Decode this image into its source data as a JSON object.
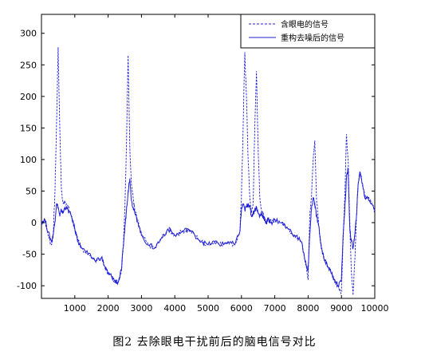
{
  "caption": "图2   去除眼电干扰前后的脑电信号对比",
  "colors": {
    "series": "#1f1fd6",
    "axis": "#000000",
    "background": "#ffffff"
  },
  "chart_data": {
    "type": "line",
    "title": "",
    "xlabel": "",
    "ylabel": "",
    "xlim": [
      0,
      10000
    ],
    "ylim": [
      -120,
      330
    ],
    "xticks": [
      1000,
      2000,
      3000,
      4000,
      5000,
      6000,
      7000,
      8000,
      9000,
      10000
    ],
    "yticks": [
      -100,
      -50,
      0,
      50,
      100,
      150,
      200,
      250,
      300
    ],
    "grid": false,
    "legend_position": "top-right",
    "series": [
      {
        "name": "含眼电的信号",
        "style": "dashed",
        "x": [
          0,
          100,
          200,
          300,
          350,
          400,
          450,
          500,
          550,
          600,
          650,
          700,
          800,
          900,
          1000,
          1100,
          1200,
          1400,
          1600,
          1800,
          1900,
          2000,
          2100,
          2200,
          2300,
          2400,
          2450,
          2500,
          2550,
          2600,
          2650,
          2700,
          2750,
          2800,
          2900,
          3000,
          3200,
          3400,
          3600,
          3800,
          4000,
          4200,
          4400,
          4600,
          4800,
          5000,
          5200,
          5400,
          5600,
          5800,
          5950,
          6000,
          6050,
          6100,
          6150,
          6200,
          6250,
          6300,
          6350,
          6400,
          6450,
          6500,
          6550,
          6600,
          6650,
          6700,
          6750,
          6800,
          6900,
          7000,
          7200,
          7400,
          7600,
          7800,
          7950,
          8000,
          8050,
          8100,
          8150,
          8200,
          8250,
          8300,
          8350,
          8400,
          8500,
          8600,
          8700,
          8800,
          8900,
          9000,
          9050,
          9100,
          9150,
          9200,
          9250,
          9300,
          9350,
          9400,
          9450,
          9500,
          9550,
          9600,
          9700,
          9800,
          9900,
          10000
        ],
        "y": [
          0,
          5,
          -20,
          -35,
          -20,
          40,
          150,
          278,
          150,
          50,
          30,
          35,
          25,
          10,
          -10,
          -30,
          -40,
          -50,
          -60,
          -55,
          -70,
          -80,
          -85,
          -92,
          -95,
          -75,
          -40,
          20,
          120,
          265,
          120,
          60,
          40,
          20,
          0,
          -20,
          -35,
          -40,
          -25,
          -10,
          -20,
          -15,
          -10,
          -20,
          -30,
          -35,
          -30,
          -35,
          -30,
          -35,
          -15,
          40,
          150,
          270,
          200,
          100,
          40,
          15,
          30,
          150,
          240,
          120,
          40,
          20,
          15,
          5,
          0,
          5,
          0,
          5,
          0,
          -10,
          -20,
          -30,
          -70,
          -90,
          10,
          40,
          100,
          130,
          40,
          10,
          -20,
          -40,
          -60,
          -70,
          -80,
          -95,
          -100,
          -110,
          -30,
          40,
          140,
          100,
          0,
          -80,
          -115,
          -60,
          10,
          60,
          80,
          70,
          40,
          40,
          30,
          20
        ]
      },
      {
        "name": "重构去噪后的信号",
        "style": "solid",
        "x": [
          0,
          100,
          200,
          300,
          350,
          400,
          450,
          500,
          550,
          600,
          650,
          700,
          800,
          900,
          1000,
          1100,
          1200,
          1400,
          1600,
          1800,
          1900,
          2000,
          2100,
          2200,
          2300,
          2400,
          2450,
          2500,
          2550,
          2600,
          2650,
          2700,
          2750,
          2800,
          2900,
          3000,
          3200,
          3400,
          3600,
          3800,
          4000,
          4200,
          4400,
          4600,
          4800,
          5000,
          5200,
          5400,
          5600,
          5800,
          5950,
          6000,
          6050,
          6100,
          6150,
          6200,
          6250,
          6300,
          6350,
          6400,
          6450,
          6500,
          6550,
          6600,
          6650,
          6700,
          6750,
          6800,
          6900,
          7000,
          7200,
          7400,
          7600,
          7800,
          7950,
          8000,
          8050,
          8100,
          8150,
          8200,
          8250,
          8300,
          8350,
          8400,
          8500,
          8600,
          8700,
          8800,
          8900,
          9000,
          9050,
          9100,
          9150,
          9200,
          9250,
          9300,
          9350,
          9400,
          9450,
          9500,
          9550,
          9600,
          9700,
          9800,
          9900,
          10000
        ],
        "y": [
          0,
          5,
          -15,
          -30,
          -20,
          0,
          30,
          25,
          10,
          20,
          15,
          25,
          20,
          10,
          -10,
          -30,
          -40,
          -50,
          -60,
          -55,
          -70,
          -80,
          -85,
          -92,
          -95,
          -75,
          -40,
          -10,
          20,
          50,
          70,
          35,
          25,
          15,
          0,
          -20,
          -35,
          -40,
          -25,
          -10,
          -20,
          -15,
          -10,
          -20,
          -30,
          -35,
          -30,
          -35,
          -30,
          -35,
          -15,
          20,
          30,
          20,
          25,
          30,
          25,
          10,
          15,
          20,
          25,
          15,
          10,
          15,
          10,
          5,
          0,
          5,
          0,
          5,
          0,
          -10,
          -20,
          -30,
          -70,
          -75,
          -20,
          20,
          40,
          30,
          10,
          0,
          -20,
          -40,
          -60,
          -70,
          -80,
          -90,
          -100,
          -90,
          -20,
          20,
          70,
          85,
          -10,
          -30,
          -40,
          -20,
          10,
          60,
          80,
          70,
          40,
          40,
          30,
          20
        ]
      }
    ]
  }
}
